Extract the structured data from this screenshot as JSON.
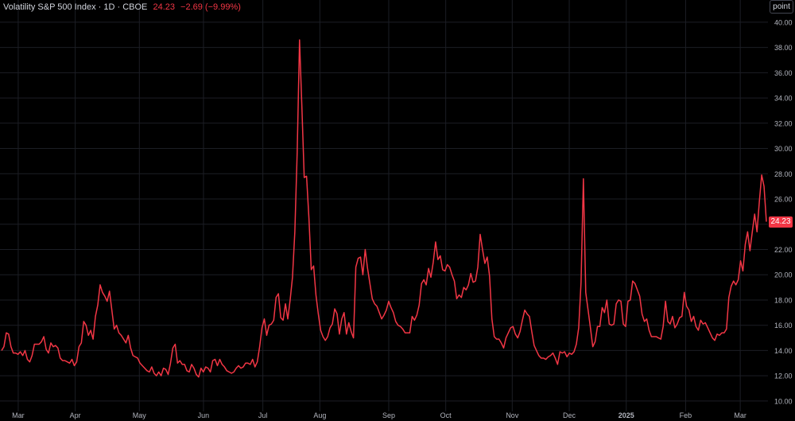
{
  "legend": {
    "symbol": "Volatility S&P 500 Index · 1D · CBOE",
    "last": "24.23",
    "change": "−2.69 (−9.99%)"
  },
  "scale_button": "point",
  "price_tag": "24.23",
  "colors": {
    "line": "#f23645",
    "grid": "#1c1e25",
    "axis_text": "#b2b5be",
    "background": "#000000"
  },
  "chart_data": {
    "type": "line",
    "title": "Volatility S&P 500 Index · 1D · CBOE",
    "xlabel": "",
    "ylabel": "",
    "ylim": [
      9.3,
      41.0
    ],
    "y_ticks": [
      "10.00",
      "12.00",
      "14.00",
      "16.00",
      "18.00",
      "20.00",
      "22.00",
      "24.00",
      "26.00",
      "28.00",
      "30.00",
      "32.00",
      "34.00",
      "36.00",
      "38.00",
      "40.00"
    ],
    "x_ticks": [
      {
        "label": "Mar",
        "t": 7
      },
      {
        "label": "Apr",
        "t": 31
      },
      {
        "label": "May",
        "t": 58
      },
      {
        "label": "Jun",
        "t": 85
      },
      {
        "label": "Jul",
        "t": 110
      },
      {
        "label": "Aug",
        "t": 134
      },
      {
        "label": "Sep",
        "t": 163
      },
      {
        "label": "Oct",
        "t": 187
      },
      {
        "label": "Nov",
        "t": 215
      },
      {
        "label": "Dec",
        "t": 239
      },
      {
        "label": "2025",
        "t": 263
      },
      {
        "label": "Feb",
        "t": 288
      },
      {
        "label": "Mar",
        "t": 311
      }
    ],
    "x_range": [
      0,
      322
    ],
    "grid": true,
    "series": [
      {
        "values": [
          14.0,
          14.3,
          15.4,
          15.3,
          14.3,
          13.8,
          13.8,
          13.7,
          13.9,
          13.6,
          14.0,
          13.3,
          13.1,
          13.6,
          14.5,
          14.5,
          14.5,
          14.7,
          15.1,
          14.1,
          13.8,
          14.6,
          14.3,
          14.4,
          14.2,
          13.4,
          13.2,
          13.2,
          13.1,
          13.0,
          13.3,
          12.8,
          13.1,
          14.3,
          14.6,
          16.3,
          16.0,
          15.2,
          15.6,
          14.9,
          16.7,
          17.6,
          19.2,
          18.6,
          18.3,
          17.9,
          18.7,
          17.2,
          15.7,
          16.0,
          15.4,
          15.2,
          14.9,
          14.6,
          15.2,
          14.2,
          13.6,
          13.5,
          13.4,
          13.0,
          12.8,
          12.6,
          12.4,
          12.3,
          12.7,
          12.2,
          12.0,
          12.3,
          12.0,
          12.6,
          12.5,
          12.1,
          13.0,
          14.2,
          14.5,
          13.0,
          13.2,
          12.9,
          12.9,
          12.4,
          12.3,
          12.9,
          12.6,
          12.1,
          11.9,
          12.6,
          12.3,
          12.7,
          12.6,
          12.3,
          13.2,
          13.3,
          12.8,
          13.3,
          12.9,
          12.7,
          12.4,
          12.3,
          12.2,
          12.3,
          12.6,
          12.8,
          12.6,
          12.7,
          13.0,
          13.0,
          12.9,
          13.3,
          12.7,
          13.1,
          14.3,
          15.8,
          16.5,
          15.2,
          16.0,
          16.1,
          16.4,
          18.2,
          18.5,
          16.6,
          16.4,
          17.7,
          16.5,
          18.0,
          19.8,
          23.4,
          29.7,
          38.6,
          33.3,
          27.7,
          27.8,
          24.5,
          20.4,
          20.7,
          18.4,
          16.9,
          15.6,
          15.1,
          14.8,
          15.1,
          15.8,
          16.1,
          17.3,
          16.9,
          15.3,
          16.5,
          17.0,
          15.3,
          16.2,
          15.5,
          15.0,
          20.6,
          21.3,
          21.4,
          20.0,
          22.0,
          20.5,
          19.3,
          18.1,
          17.7,
          17.5,
          17.0,
          16.5,
          16.8,
          17.2,
          17.9,
          17.4,
          17.0,
          16.3,
          16.0,
          15.9,
          15.7,
          15.4,
          15.4,
          15.4,
          16.7,
          16.4,
          16.8,
          17.6,
          19.3,
          19.6,
          19.2,
          20.5,
          19.8,
          21.0,
          22.6,
          21.2,
          21.5,
          20.4,
          20.3,
          20.8,
          20.6,
          20.0,
          19.5,
          18.1,
          18.4,
          18.2,
          19.0,
          18.8,
          19.2,
          20.1,
          19.4,
          19.5,
          20.6,
          23.2,
          22.0,
          20.9,
          21.4,
          19.9,
          16.5,
          15.1,
          14.9,
          14.9,
          14.6,
          14.2,
          15.0,
          15.4,
          15.8,
          15.9,
          15.3,
          15.0,
          15.5,
          16.4,
          17.2,
          16.9,
          16.7,
          15.5,
          14.4,
          14.0,
          13.6,
          13.4,
          13.4,
          13.3,
          13.5,
          13.6,
          13.8,
          13.4,
          12.9,
          13.9,
          13.8,
          13.9,
          13.5,
          13.8,
          13.7,
          13.9,
          14.5,
          15.8,
          19.4,
          27.6,
          18.6,
          17.2,
          15.8,
          14.3,
          14.7,
          15.9,
          15.9,
          17.4,
          17.0,
          18.0,
          16.1,
          16.0,
          16.1,
          17.7,
          18.0,
          17.9,
          16.1,
          15.9,
          17.9,
          18.0,
          19.5,
          19.3,
          18.8,
          18.3,
          16.9,
          16.3,
          16.5,
          15.6,
          15.1,
          15.1,
          15.1,
          15.0,
          14.9,
          15.9,
          17.9,
          16.3,
          16.1,
          16.7,
          15.8,
          16.1,
          16.6,
          16.7,
          18.6,
          17.5,
          17.2,
          16.3,
          16.7,
          15.9,
          15.6,
          16.4,
          16.1,
          16.2,
          15.8,
          15.4,
          15.0,
          14.8,
          15.3,
          15.2,
          15.4,
          15.4,
          15.7,
          18.2,
          19.1,
          19.5,
          19.2,
          19.6,
          21.1,
          20.3,
          22.4,
          23.4,
          21.9,
          23.4,
          24.8,
          23.4,
          25.8,
          27.9,
          27.0,
          24.2
        ]
      }
    ]
  }
}
